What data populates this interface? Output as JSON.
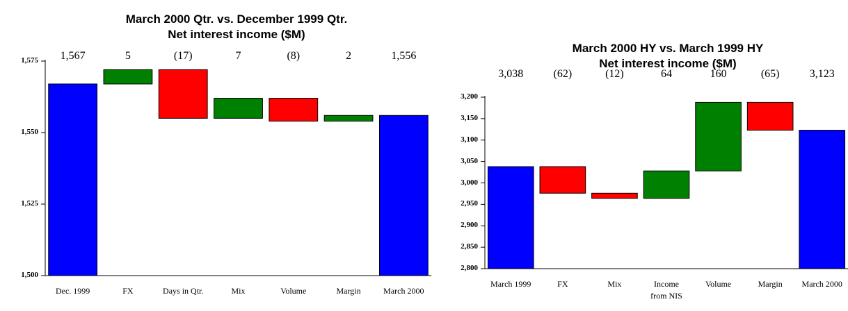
{
  "chart_data": [
    {
      "type": "waterfall",
      "title": "March 2000 Qtr. vs. December 1999 Qtr.",
      "subtitle": "Net interest income ($M)",
      "categories": [
        "Dec. 1999",
        "FX",
        "Days in Qtr.",
        "Mix",
        "Volume",
        "Margin",
        "March 2000"
      ],
      "values": [
        1567,
        5,
        -17,
        7,
        -8,
        2,
        1556
      ],
      "value_labels": [
        "1,567",
        "5",
        "(17)",
        "7",
        "(8)",
        "2",
        "1,556"
      ],
      "colors": {
        "total": "#0000ff",
        "increase": "#008000",
        "decrease": "#ff0000"
      },
      "ylim": [
        1500,
        1575
      ],
      "yticks": [
        {
          "value": 1500,
          "label": "1,500"
        },
        {
          "value": 1525,
          "label": "1,525"
        },
        {
          "value": 1550,
          "label": "1,550"
        },
        {
          "value": 1575,
          "label": "1,575"
        }
      ]
    },
    {
      "type": "waterfall",
      "title": "March 2000 HY vs. March 1999 HY",
      "subtitle": "Net interest income ($M)",
      "categories": [
        "March 1999",
        "FX",
        "Mix",
        "Income from NIS",
        "Volume",
        "Margin",
        "March 2000"
      ],
      "values": [
        3038,
        -62,
        -12,
        64,
        160,
        -65,
        3123
      ],
      "value_labels": [
        "3,038",
        "(62)",
        "(12)",
        "64",
        "160",
        "(65)",
        "3,123"
      ],
      "colors": {
        "total": "#0000ff",
        "increase": "#008000",
        "decrease": "#ff0000"
      },
      "ylim": [
        2800,
        3200
      ],
      "yticks": [
        {
          "value": 2800,
          "label": "2,800"
        },
        {
          "value": 2850,
          "label": "2,850"
        },
        {
          "value": 2900,
          "label": "2,900"
        },
        {
          "value": 2950,
          "label": "2,950"
        },
        {
          "value": 3000,
          "label": "3,000"
        },
        {
          "value": 3050,
          "label": "3,050"
        },
        {
          "value": 3100,
          "label": "3,100"
        },
        {
          "value": 3150,
          "label": "3,150"
        },
        {
          "value": 3200,
          "label": "3,200"
        }
      ]
    }
  ]
}
